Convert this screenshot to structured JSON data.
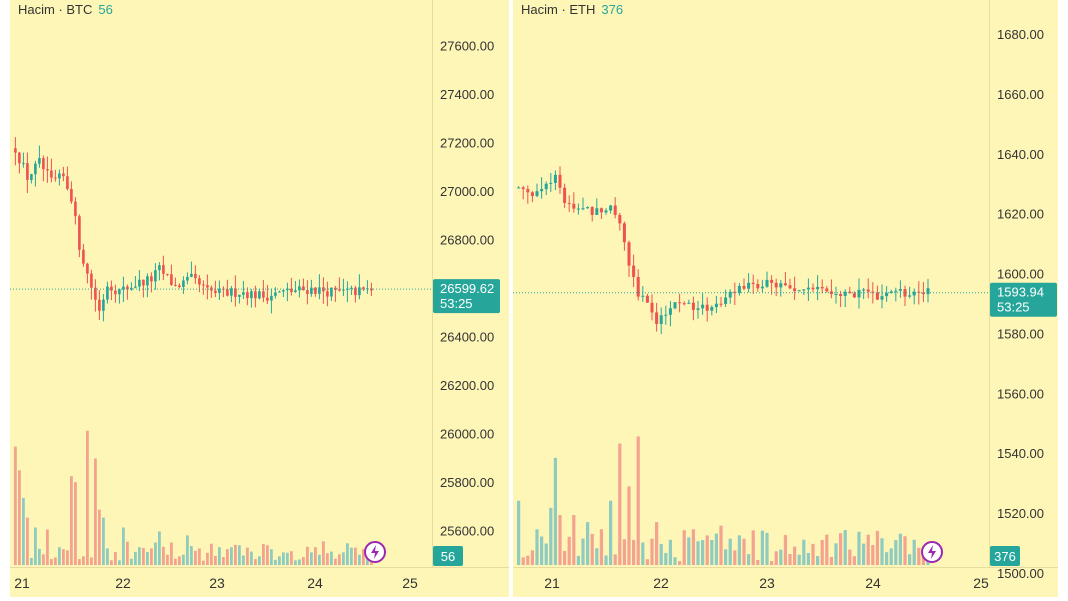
{
  "colors": {
    "background": "#fef6b7",
    "up": "#26a69a",
    "down": "#ef5350",
    "volume_up": "#8fcbbf",
    "volume_down": "#f3a38f",
    "tag": "#26a69a",
    "flash": "#9c27b0"
  },
  "icons": {
    "lightning": "lightning-icon"
  },
  "chart_data": [
    {
      "type": "candlestick",
      "legend": {
        "label": "Hacim · BTC",
        "value": "56"
      },
      "ylim": [
        25500,
        27700
      ],
      "yticks": [
        "27600.00",
        "27400.00",
        "27200.00",
        "27000.00",
        "26800.00",
        "26600.00",
        "26400.00",
        "26200.00",
        "26000.00",
        "25800.00",
        "25600.00"
      ],
      "xticks": [
        "21",
        "22",
        "23",
        "24",
        "25"
      ],
      "last_price": "26599.62",
      "countdown": "53:25",
      "volume_tag": "56",
      "candles": [],
      "volume": []
    },
    {
      "type": "candlestick",
      "legend": {
        "label": "Hacim · ETH",
        "value": "376"
      },
      "ylim": [
        1500,
        1685
      ],
      "yticks": [
        "1680.00",
        "1660.00",
        "1640.00",
        "1620.00",
        "1600.00",
        "1580.00",
        "1560.00",
        "1540.00",
        "1520.00",
        "1500.00"
      ],
      "xticks": [
        "21",
        "22",
        "23",
        "24",
        "25"
      ],
      "last_price": "1593.94",
      "countdown": "53:25",
      "volume_tag": "376",
      "candles": [],
      "volume": []
    }
  ]
}
